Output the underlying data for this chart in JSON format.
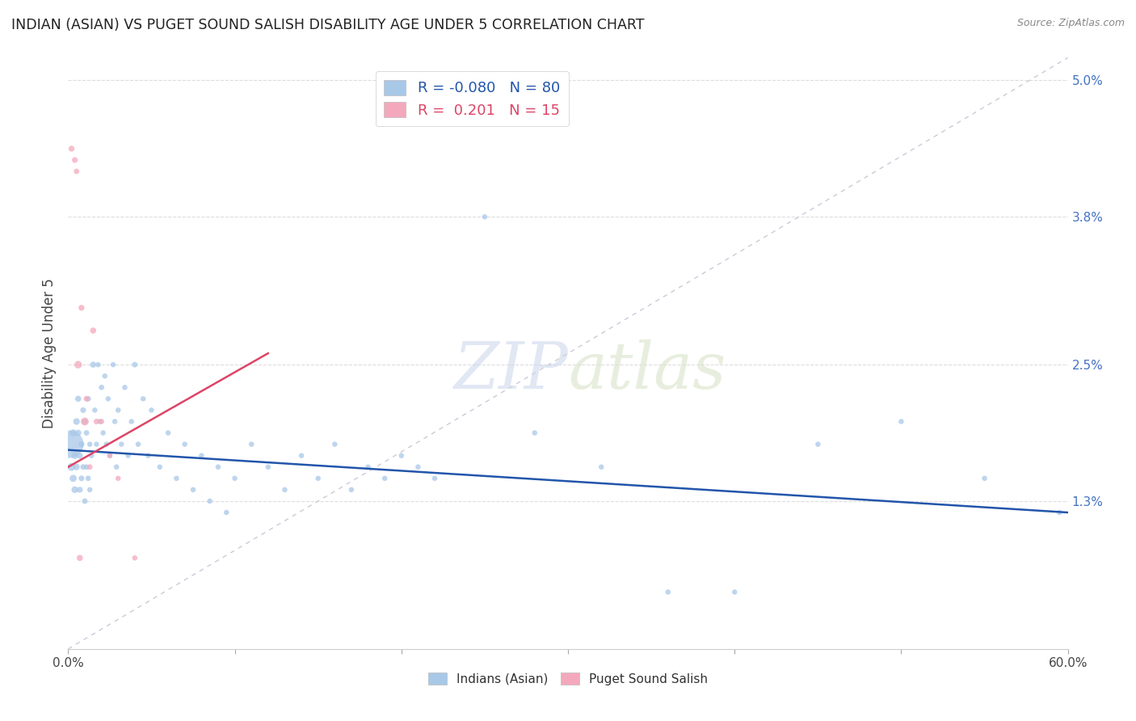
{
  "title": "INDIAN (ASIAN) VS PUGET SOUND SALISH DISABILITY AGE UNDER 5 CORRELATION CHART",
  "source": "Source: ZipAtlas.com",
  "ylabel": "Disability Age Under 5",
  "xlim": [
    0,
    0.6
  ],
  "ylim": [
    0.0,
    0.052
  ],
  "yticks_right": [
    0.013,
    0.025,
    0.038,
    0.05
  ],
  "ytick_labels_right": [
    "1.3%",
    "2.5%",
    "3.8%",
    "5.0%"
  ],
  "xtick_labels_show": [
    "0.0%",
    "60.0%"
  ],
  "xtick_positions_show": [
    0.0,
    0.6
  ],
  "xtick_minor_positions": [
    0.1,
    0.2,
    0.3,
    0.4,
    0.5
  ],
  "blue_color": "#A8C8E8",
  "pink_color": "#F4A8BC",
  "blue_line_color": "#2255AA",
  "pink_line_color": "#DD4466",
  "diag_line_color": "#D0C8D8",
  "R_blue": -0.08,
  "N_blue": 80,
  "R_pink": 0.201,
  "N_pink": 15,
  "blue_line_x0": 0.0,
  "blue_line_y0": 0.0175,
  "blue_line_x1": 0.6,
  "blue_line_y1": 0.012,
  "pink_line_x0": 0.0,
  "pink_line_y0": 0.016,
  "pink_line_x1": 0.12,
  "pink_line_y1": 0.026,
  "blue_x": [
    0.001,
    0.002,
    0.003,
    0.003,
    0.004,
    0.004,
    0.005,
    0.005,
    0.006,
    0.006,
    0.007,
    0.007,
    0.008,
    0.008,
    0.009,
    0.009,
    0.01,
    0.01,
    0.011,
    0.011,
    0.012,
    0.012,
    0.013,
    0.013,
    0.014,
    0.015,
    0.016,
    0.017,
    0.018,
    0.019,
    0.02,
    0.021,
    0.022,
    0.023,
    0.024,
    0.025,
    0.027,
    0.028,
    0.029,
    0.03,
    0.032,
    0.034,
    0.036,
    0.038,
    0.04,
    0.042,
    0.045,
    0.048,
    0.05,
    0.055,
    0.06,
    0.065,
    0.07,
    0.075,
    0.08,
    0.085,
    0.09,
    0.095,
    0.1,
    0.11,
    0.12,
    0.13,
    0.14,
    0.15,
    0.16,
    0.17,
    0.18,
    0.19,
    0.2,
    0.21,
    0.22,
    0.25,
    0.28,
    0.32,
    0.36,
    0.4,
    0.45,
    0.5,
    0.55,
    0.595
  ],
  "blue_y": [
    0.018,
    0.016,
    0.015,
    0.019,
    0.017,
    0.014,
    0.02,
    0.016,
    0.019,
    0.022,
    0.017,
    0.014,
    0.018,
    0.015,
    0.021,
    0.016,
    0.02,
    0.013,
    0.019,
    0.016,
    0.022,
    0.015,
    0.018,
    0.014,
    0.017,
    0.025,
    0.021,
    0.018,
    0.025,
    0.02,
    0.023,
    0.019,
    0.024,
    0.018,
    0.022,
    0.017,
    0.025,
    0.02,
    0.016,
    0.021,
    0.018,
    0.023,
    0.017,
    0.02,
    0.025,
    0.018,
    0.022,
    0.017,
    0.021,
    0.016,
    0.019,
    0.015,
    0.018,
    0.014,
    0.017,
    0.013,
    0.016,
    0.012,
    0.015,
    0.018,
    0.016,
    0.014,
    0.017,
    0.015,
    0.018,
    0.014,
    0.016,
    0.015,
    0.017,
    0.016,
    0.015,
    0.038,
    0.019,
    0.016,
    0.005,
    0.005,
    0.018,
    0.02,
    0.015,
    0.012
  ],
  "blue_sizes": [
    600,
    50,
    40,
    40,
    38,
    36,
    35,
    33,
    32,
    30,
    30,
    28,
    28,
    26,
    26,
    25,
    28,
    25,
    24,
    23,
    25,
    23,
    22,
    22,
    22,
    30,
    22,
    22,
    22,
    22,
    24,
    22,
    22,
    22,
    22,
    22,
    22,
    22,
    22,
    22,
    22,
    22,
    22,
    22,
    25,
    22,
    22,
    22,
    22,
    22,
    22,
    22,
    22,
    22,
    22,
    22,
    22,
    22,
    22,
    22,
    22,
    22,
    22,
    22,
    22,
    22,
    22,
    22,
    22,
    22,
    22,
    22,
    22,
    22,
    22,
    22,
    22,
    22,
    22,
    22
  ],
  "pink_x": [
    0.002,
    0.004,
    0.005,
    0.006,
    0.007,
    0.008,
    0.01,
    0.011,
    0.013,
    0.015,
    0.017,
    0.02,
    0.025,
    0.03,
    0.04
  ],
  "pink_y": [
    0.044,
    0.043,
    0.042,
    0.025,
    0.008,
    0.03,
    0.02,
    0.022,
    0.016,
    0.028,
    0.02,
    0.02,
    0.017,
    0.015,
    0.008
  ],
  "pink_sizes": [
    28,
    26,
    24,
    45,
    30,
    28,
    50,
    26,
    24,
    30,
    26,
    24,
    22,
    22,
    22
  ]
}
